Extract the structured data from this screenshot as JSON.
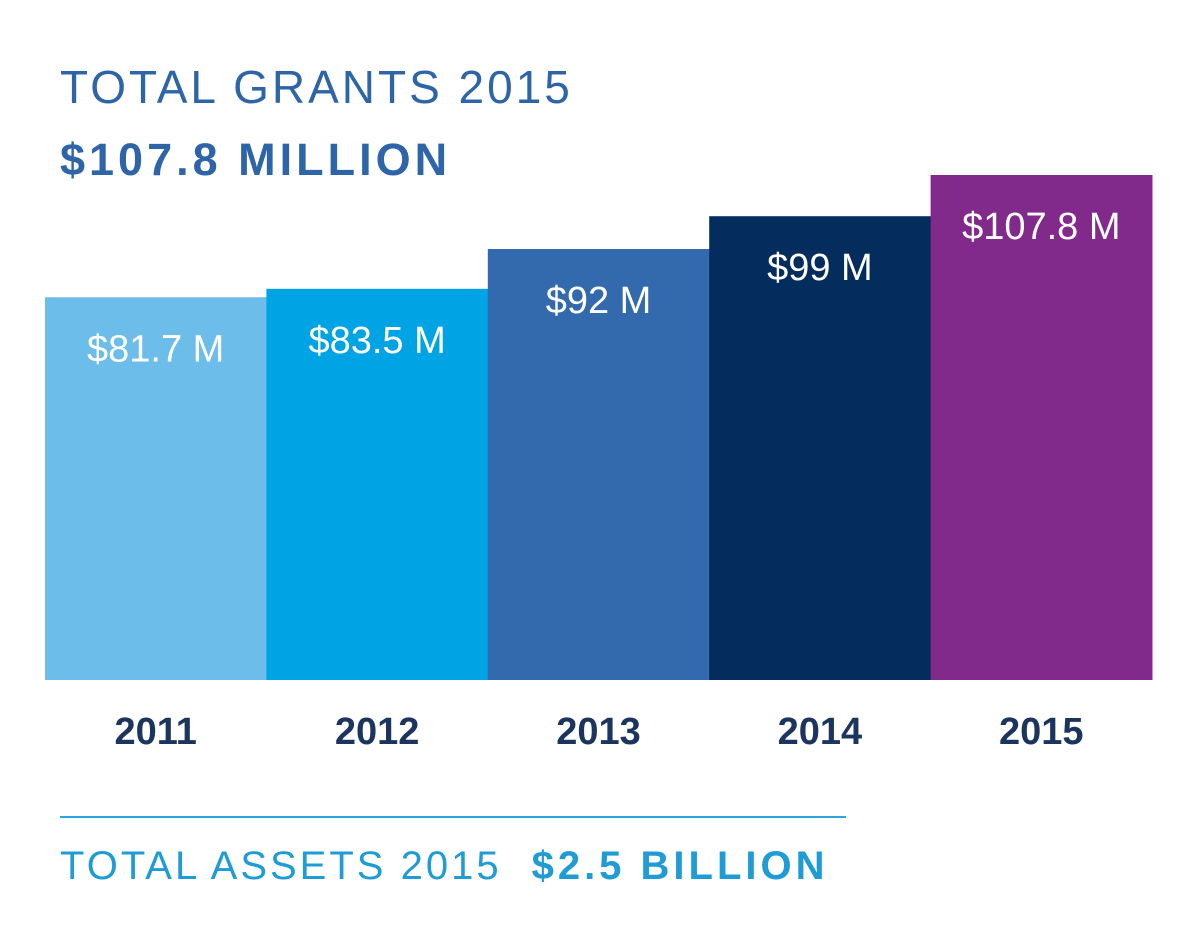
{
  "header": {
    "title": "TOTAL GRANTS 2015",
    "amount": "$107.8 MILLION"
  },
  "chart_data": {
    "type": "bar",
    "categories": [
      "2011",
      "2012",
      "2013",
      "2014",
      "2015"
    ],
    "values": [
      81.7,
      83.5,
      92,
      99,
      107.8
    ],
    "data_labels": [
      "$81.7 M",
      "$83.5 M",
      "$92 M",
      "$99 M",
      "$107.8 M"
    ],
    "colors": [
      "#6cbde9",
      "#00a3e3",
      "#326aad",
      "#042c5c",
      "#812a8c"
    ],
    "title": "TOTAL GRANTS 2015",
    "xlabel": "",
    "ylabel": "",
    "ylim": [
      0,
      111
    ],
    "grid": false,
    "legend": "none"
  },
  "footer": {
    "label": "TOTAL ASSETS 2015",
    "value": "$2.5 BILLION"
  },
  "colors": {
    "headline": "#2e64a8",
    "year_label": "#1b355e",
    "footer": "#1f9bd6",
    "bar_label": "#ffffff"
  }
}
